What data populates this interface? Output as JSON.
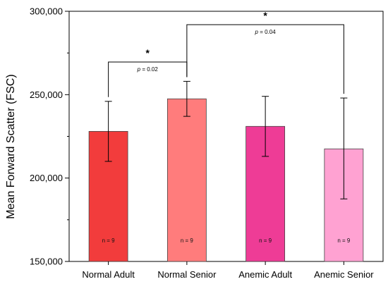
{
  "chart_data": {
    "type": "bar",
    "title": "",
    "xlabel": "",
    "ylabel": "Mean Forward Scatter (FSC)",
    "ylim": [
      150000,
      300000
    ],
    "yticks": [
      150000,
      200000,
      250000,
      300000
    ],
    "ytick_labels": [
      "150,000",
      "200,000",
      "250,000",
      "300,000"
    ],
    "grid": false,
    "categories": [
      "Normal Adult",
      "Normal Senior",
      "Anemic Adult",
      "Anemic Senior"
    ],
    "values": [
      228000,
      247500,
      231000,
      217500
    ],
    "error_low": [
      210000,
      237000,
      213000,
      187500
    ],
    "error_high": [
      246000,
      258000,
      249000,
      248000
    ],
    "colors": [
      "#f23c3c",
      "#ff7c7c",
      "#ee3c96",
      "#ffa2d2"
    ],
    "n_labels": [
      "n = 9",
      "n = 9",
      "n = 9",
      "n = 9"
    ],
    "significance": [
      {
        "from": 0,
        "to": 1,
        "star": "*",
        "p_prefix": "p",
        "p_value": " = 0.02"
      },
      {
        "from": 1,
        "to": 3,
        "star": "*",
        "p_prefix": "p",
        "p_value": " = 0.04"
      }
    ]
  }
}
